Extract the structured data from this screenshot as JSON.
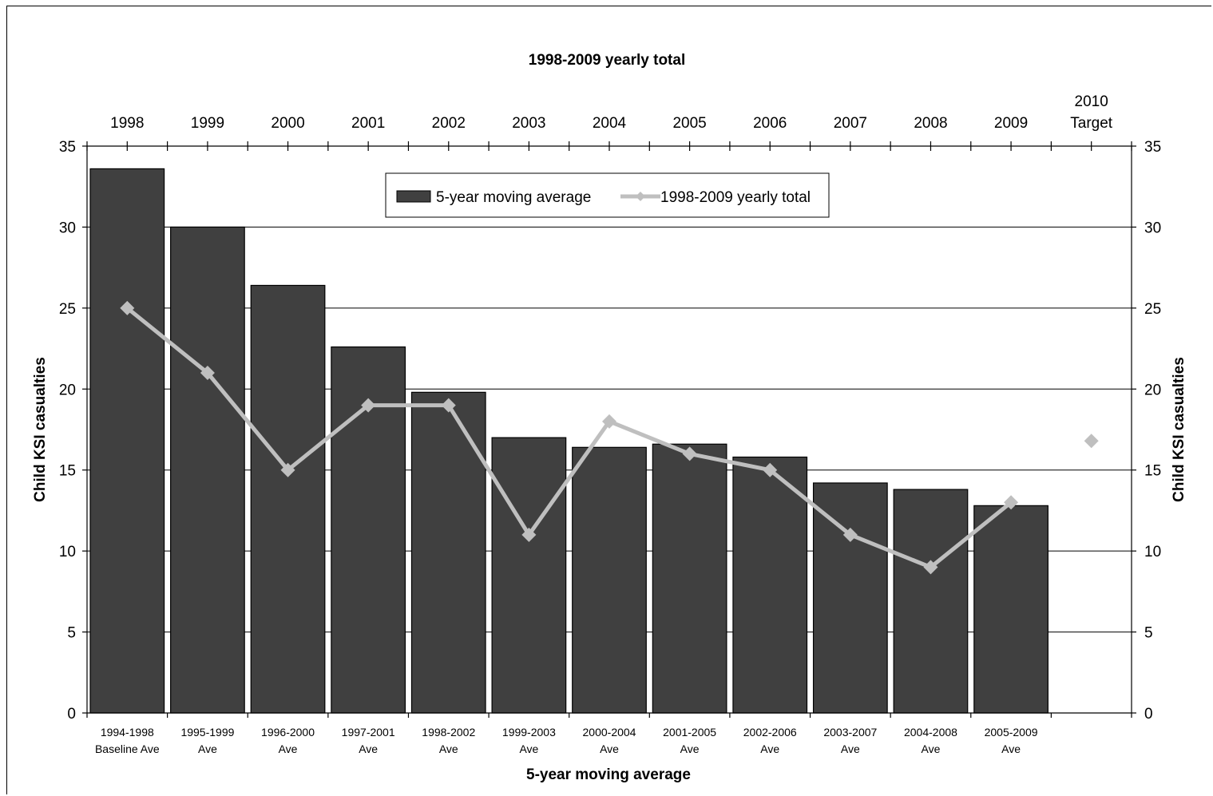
{
  "chart_data": {
    "type": "bar",
    "title": "1998-2009 yearly total",
    "xlabel": "5-year moving average",
    "ylabel": "Child KSI casualties",
    "ylabel_right": "Child KSI casualties",
    "ylim": [
      0,
      35
    ],
    "y_ticks": [
      0,
      5,
      10,
      15,
      20,
      25,
      30,
      35
    ],
    "grid": true,
    "legend_position": "top-center",
    "categories": [
      [
        "1994-1998",
        "Baseline Ave"
      ],
      [
        "1995-1999",
        "Ave"
      ],
      [
        "1996-2000",
        "Ave"
      ],
      [
        "1997-2001",
        "Ave"
      ],
      [
        "1998-2002",
        "Ave"
      ],
      [
        "1999-2003",
        "Ave"
      ],
      [
        "2000-2004",
        "Ave"
      ],
      [
        "2001-2005",
        "Ave"
      ],
      [
        "2002-2006",
        "Ave"
      ],
      [
        "2003-2007",
        "Ave"
      ],
      [
        "2004-2008",
        "Ave"
      ],
      [
        "2005-2009",
        "Ave"
      ],
      [
        "",
        ""
      ]
    ],
    "secondary_x_categories": [
      [
        "1998"
      ],
      [
        "1999"
      ],
      [
        "2000"
      ],
      [
        "2001"
      ],
      [
        "2002"
      ],
      [
        "2003"
      ],
      [
        "2004"
      ],
      [
        "2005"
      ],
      [
        "2006"
      ],
      [
        "2007"
      ],
      [
        "2008"
      ],
      [
        "2009"
      ],
      [
        "2010",
        "Target"
      ]
    ],
    "series": [
      {
        "name": "5-year moving average",
        "type": "bar",
        "color": "#404040",
        "values": [
          33.6,
          30.0,
          26.4,
          22.6,
          19.8,
          17.0,
          16.4,
          16.6,
          15.8,
          14.2,
          13.8,
          12.8,
          null
        ]
      },
      {
        "name": "1998-2009 yearly total",
        "type": "line",
        "color": "#bfbfbf",
        "marker": "diamond",
        "values": [
          25,
          21,
          15,
          19,
          19,
          11,
          18,
          16,
          15,
          11,
          9,
          13,
          null
        ]
      },
      {
        "name": "2010 Target",
        "type": "point",
        "color": "#bfbfbf",
        "marker": "diamond",
        "values": [
          null,
          null,
          null,
          null,
          null,
          null,
          null,
          null,
          null,
          null,
          null,
          null,
          16.8
        ]
      }
    ]
  }
}
